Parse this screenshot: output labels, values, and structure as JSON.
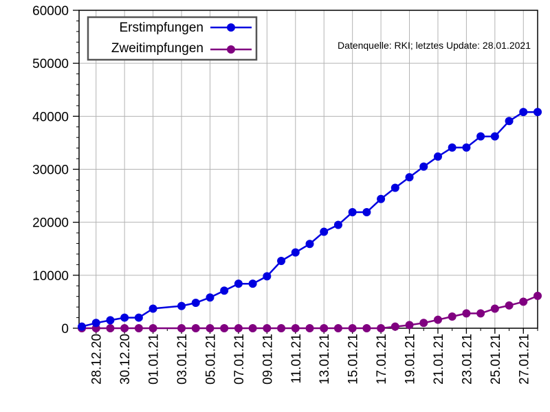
{
  "chart_data": {
    "type": "line",
    "title": "",
    "xlabel": "",
    "ylabel": "",
    "ylim": [
      0,
      60000
    ],
    "y_ticks": [
      0,
      10000,
      20000,
      30000,
      40000,
      50000,
      60000
    ],
    "y_tick_labels": [
      "0",
      "10000",
      "20000",
      "30000",
      "40000",
      "50000",
      "60000"
    ],
    "grid": true,
    "legend_position": "top-left",
    "annotation": "Datenquelle: RKI; letztes Update: 28.01.2021",
    "x_tick_labels": [
      "28.12.20",
      "30.12.20",
      "01.01.21",
      "03.01.21",
      "05.01.21",
      "07.01.21",
      "09.01.21",
      "11.01.21",
      "13.01.21",
      "15.01.21",
      "17.01.21",
      "19.01.21",
      "21.01.21",
      "23.01.21",
      "25.01.21",
      "27.01.21"
    ],
    "x": [
      "27.12.20",
      "28.12.20",
      "29.12.20",
      "30.12.20",
      "31.12.20",
      "01.01.21",
      "03.01.21",
      "04.01.21",
      "05.01.21",
      "06.01.21",
      "07.01.21",
      "08.01.21",
      "09.01.21",
      "10.01.21",
      "11.01.21",
      "12.01.21",
      "13.01.21",
      "14.01.21",
      "15.01.21",
      "16.01.21",
      "17.01.21",
      "18.01.21",
      "19.01.21",
      "20.01.21",
      "21.01.21",
      "22.01.21",
      "23.01.21",
      "24.01.21",
      "25.01.21",
      "26.01.21",
      "27.01.21",
      "28.01.21"
    ],
    "series": [
      {
        "name": "Erstimpfungen",
        "color": "#0000e0",
        "values": [
          300,
          1000,
          1500,
          2000,
          2000,
          3700,
          4200,
          4800,
          5800,
          7100,
          8400,
          8400,
          9800,
          12700,
          14300,
          15900,
          18200,
          19500,
          21900,
          21900,
          24400,
          26500,
          28500,
          30500,
          32400,
          34100,
          34100,
          36200,
          36200,
          39100,
          40800,
          40800
        ]
      },
      {
        "name": "Zweitimpfungen",
        "color": "#800080",
        "values": [
          0,
          0,
          0,
          0,
          0,
          0,
          0,
          0,
          0,
          0,
          0,
          0,
          0,
          0,
          0,
          0,
          0,
          0,
          0,
          0,
          0,
          300,
          600,
          1000,
          1600,
          2200,
          2800,
          2800,
          3700,
          4300,
          5000,
          6100
        ]
      }
    ]
  }
}
